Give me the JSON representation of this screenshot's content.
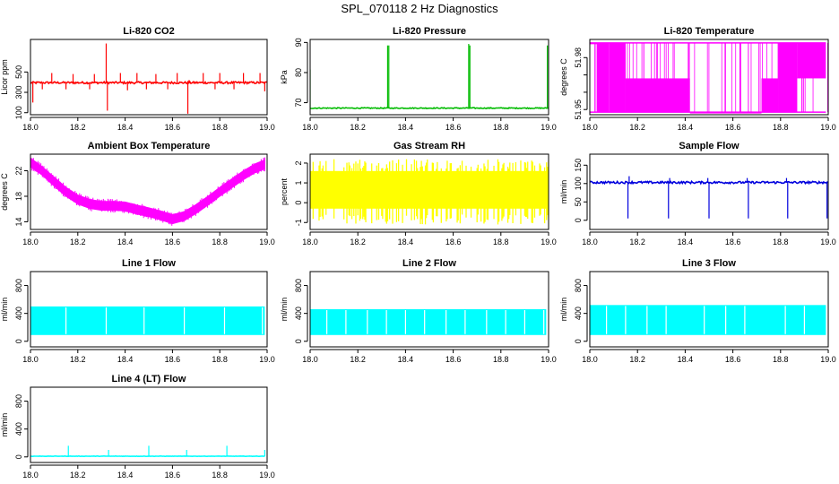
{
  "figure": {
    "title": "SPL_070118  2 Hz Diagnostics"
  },
  "chart_data": [
    {
      "id": "co2",
      "type": "line",
      "title": "Li-820 CO2",
      "ylabel": "Licor ppm",
      "xlim": [
        18.0,
        19.0
      ],
      "ylim": [
        80,
        820
      ],
      "xticks": [
        18.0,
        18.2,
        18.4,
        18.6,
        18.8,
        19.0
      ],
      "yticks": [
        100,
        300,
        500
      ],
      "color": "#ff0000",
      "render": "spiky",
      "base": 395,
      "noise": 10,
      "t0": 18.0,
      "t1": 19.0,
      "spikes": [
        {
          "x": 18.01,
          "y": 200
        },
        {
          "x": 18.05,
          "y": 330
        },
        {
          "x": 18.09,
          "y": 490
        },
        {
          "x": 18.15,
          "y": 330
        },
        {
          "x": 18.18,
          "y": 480
        },
        {
          "x": 18.25,
          "y": 330
        },
        {
          "x": 18.27,
          "y": 480
        },
        {
          "x": 18.32,
          "y": 780
        },
        {
          "x": 18.325,
          "y": 120
        },
        {
          "x": 18.38,
          "y": 490
        },
        {
          "x": 18.41,
          "y": 320
        },
        {
          "x": 18.45,
          "y": 490
        },
        {
          "x": 18.49,
          "y": 330
        },
        {
          "x": 18.53,
          "y": 480
        },
        {
          "x": 18.58,
          "y": 330
        },
        {
          "x": 18.62,
          "y": 490
        },
        {
          "x": 18.665,
          "y": 90
        },
        {
          "x": 18.67,
          "y": 420
        },
        {
          "x": 18.73,
          "y": 490
        },
        {
          "x": 18.78,
          "y": 330
        },
        {
          "x": 18.8,
          "y": 490
        },
        {
          "x": 18.86,
          "y": 330
        },
        {
          "x": 18.9,
          "y": 490
        },
        {
          "x": 18.97,
          "y": 490
        },
        {
          "x": 18.99,
          "y": 310
        }
      ]
    },
    {
      "id": "pressure",
      "type": "line",
      "title": "Li-820 Pressure",
      "ylabel": "kPa",
      "xlim": [
        18.0,
        19.0
      ],
      "ylim": [
        66,
        91
      ],
      "xticks": [
        18.0,
        18.2,
        18.4,
        18.6,
        18.8,
        19.0
      ],
      "yticks": [
        70,
        80,
        90
      ],
      "color": "#00bb00",
      "render": "spiky",
      "base": 68.2,
      "noise": 0.15,
      "t0": 18.0,
      "t1": 19.0,
      "spikes": [
        {
          "x": 18.0,
          "y": 81
        },
        {
          "x": 18.325,
          "y": 89
        },
        {
          "x": 18.33,
          "y": 89
        },
        {
          "x": 18.665,
          "y": 89.5
        },
        {
          "x": 18.67,
          "y": 89
        },
        {
          "x": 18.995,
          "y": 89
        }
      ]
    },
    {
      "id": "temperature",
      "type": "line",
      "title": "Li-820 Temperature",
      "ylabel": "degrees C",
      "xlim": [
        18.0,
        19.0
      ],
      "ylim": [
        51.947,
        51.9905
      ],
      "xticks": [
        18.0,
        18.2,
        18.4,
        18.6,
        18.8,
        19.0
      ],
      "yticks": [
        51.95,
        51.96,
        51.97,
        51.98
      ],
      "ytick_labels": [
        "51.95",
        "",
        "",
        "51.98"
      ],
      "color": "#ff00ff",
      "render": "bands",
      "bands": [
        {
          "x0": 18.0,
          "x1": 18.03,
          "lo": 51.9885,
          "hi": 51.9885
        },
        {
          "x0": 18.03,
          "x1": 18.08,
          "lo": 51.9485,
          "hi": 51.9885
        },
        {
          "x0": 18.08,
          "x1": 18.15,
          "lo": 51.9485,
          "hi": 51.9885
        },
        {
          "x0": 18.15,
          "x1": 18.42,
          "lo": 51.9485,
          "hi": 51.968
        },
        {
          "x0": 18.42,
          "x1": 18.72,
          "lo": 51.9485,
          "hi": 51.9485
        },
        {
          "x0": 18.72,
          "x1": 18.79,
          "lo": 51.9485,
          "hi": 51.968
        },
        {
          "x0": 18.79,
          "x1": 18.87,
          "lo": 51.9485,
          "hi": 51.9885
        },
        {
          "x0": 18.87,
          "x1": 18.99,
          "lo": 51.968,
          "hi": 51.9885
        }
      ]
    },
    {
      "id": "ambient",
      "type": "line",
      "title": "Ambient Box Temperature",
      "ylabel": "degrees C",
      "xlim": [
        18.0,
        19.0
      ],
      "ylim": [
        12.8,
        24.6
      ],
      "xticks": [
        18.0,
        18.2,
        18.4,
        18.6,
        18.8,
        19.0
      ],
      "yticks": [
        14,
        18,
        22
      ],
      "color": "#ff00ff",
      "render": "envelope",
      "points": [
        {
          "x": 18.0,
          "lo": 22.6,
          "hi": 24.0
        },
        {
          "x": 18.05,
          "lo": 21.3,
          "hi": 22.6
        },
        {
          "x": 18.1,
          "lo": 19.6,
          "hi": 21.0
        },
        {
          "x": 18.15,
          "lo": 18.0,
          "hi": 19.4
        },
        {
          "x": 18.2,
          "lo": 16.8,
          "hi": 18.2
        },
        {
          "x": 18.25,
          "lo": 16.1,
          "hi": 17.5
        },
        {
          "x": 18.3,
          "lo": 15.8,
          "hi": 17.2
        },
        {
          "x": 18.35,
          "lo": 15.8,
          "hi": 17.2
        },
        {
          "x": 18.4,
          "lo": 15.7,
          "hi": 17.1
        },
        {
          "x": 18.45,
          "lo": 15.2,
          "hi": 16.6
        },
        {
          "x": 18.5,
          "lo": 14.8,
          "hi": 16.2
        },
        {
          "x": 18.55,
          "lo": 14.3,
          "hi": 15.7
        },
        {
          "x": 18.6,
          "lo": 13.7,
          "hi": 15.1
        },
        {
          "x": 18.65,
          "lo": 14.2,
          "hi": 15.6
        },
        {
          "x": 18.7,
          "lo": 15.3,
          "hi": 16.7
        },
        {
          "x": 18.75,
          "lo": 16.6,
          "hi": 18.0
        },
        {
          "x": 18.8,
          "lo": 18.0,
          "hi": 19.4
        },
        {
          "x": 18.85,
          "lo": 19.3,
          "hi": 20.7
        },
        {
          "x": 18.9,
          "lo": 20.6,
          "hi": 22.0
        },
        {
          "x": 18.95,
          "lo": 21.7,
          "hi": 23.1
        },
        {
          "x": 18.99,
          "lo": 22.3,
          "hi": 23.7
        }
      ]
    },
    {
      "id": "rh",
      "type": "line",
      "title": "Gas Stream RH",
      "ylabel": "percent",
      "xlim": [
        18.0,
        19.0
      ],
      "ylim": [
        -1.35,
        2.45
      ],
      "xticks": [
        18.0,
        18.2,
        18.4,
        18.6,
        18.8,
        19.0
      ],
      "yticks": [
        -1,
        0,
        1,
        2
      ],
      "color": "#ffff00",
      "render": "noise",
      "lo": -1.1,
      "hi": 2.2,
      "core_lo": -0.3,
      "core_hi": 1.6,
      "t0": 18.0,
      "t1": 19.0
    },
    {
      "id": "sample",
      "type": "line",
      "title": "Sample Flow",
      "ylabel": "ml/min",
      "xlim": [
        18.0,
        19.0
      ],
      "ylim": [
        -25,
        180
      ],
      "xticks": [
        18.0,
        18.2,
        18.4,
        18.6,
        18.8,
        19.0
      ],
      "yticks": [
        0,
        50,
        100,
        150
      ],
      "color": "#0000dd",
      "render": "spiky",
      "base": 103,
      "noise": 3,
      "t0": 18.0,
      "t1": 19.0,
      "spikes": [
        {
          "x": 18.16,
          "y": 5
        },
        {
          "x": 18.165,
          "y": 120
        },
        {
          "x": 18.33,
          "y": 5
        },
        {
          "x": 18.335,
          "y": 115
        },
        {
          "x": 18.5,
          "y": 5
        },
        {
          "x": 18.495,
          "y": 115
        },
        {
          "x": 18.665,
          "y": 5
        },
        {
          "x": 18.66,
          "y": 115
        },
        {
          "x": 18.83,
          "y": 5
        },
        {
          "x": 18.825,
          "y": 115
        },
        {
          "x": 18.995,
          "y": 5
        }
      ]
    },
    {
      "id": "line1",
      "type": "area",
      "title": "Line 1 Flow",
      "ylabel": "ml/min",
      "xlim": [
        18.0,
        19.0
      ],
      "ylim": [
        -80,
        1000
      ],
      "xticks": [
        18.0,
        18.2,
        18.4,
        18.6,
        18.8,
        19.0
      ],
      "yticks": [
        0,
        400,
        800
      ],
      "color": "#00ffff",
      "render": "block",
      "lo": 90,
      "hi": 500,
      "t0": 18.0,
      "t1": 18.99,
      "gaps": [
        18.15,
        18.32,
        18.48,
        18.65,
        18.82,
        18.98
      ]
    },
    {
      "id": "line2",
      "type": "area",
      "title": "Line 2 Flow",
      "ylabel": "ml/min",
      "xlim": [
        18.0,
        19.0
      ],
      "ylim": [
        -80,
        1000
      ],
      "xticks": [
        18.0,
        18.2,
        18.4,
        18.6,
        18.8,
        19.0
      ],
      "yticks": [
        0,
        400,
        800
      ],
      "color": "#00ffff",
      "render": "block",
      "lo": 90,
      "hi": 460,
      "t0": 18.0,
      "t1": 18.99,
      "gaps": [
        18.07,
        18.15,
        18.24,
        18.32,
        18.4,
        18.48,
        18.57,
        18.65,
        18.74,
        18.82,
        18.9,
        18.98
      ]
    },
    {
      "id": "line3",
      "type": "area",
      "title": "Line 3 Flow",
      "ylabel": "ml/min",
      "xlim": [
        18.0,
        19.0
      ],
      "ylim": [
        -80,
        1000
      ],
      "xticks": [
        18.0,
        18.2,
        18.4,
        18.6,
        18.8,
        19.0
      ],
      "yticks": [
        0,
        400,
        800
      ],
      "color": "#00ffff",
      "render": "block",
      "lo": 90,
      "hi": 520,
      "t0": 18.0,
      "t1": 18.99,
      "gaps": [
        18.07,
        18.15,
        18.24,
        18.32,
        18.48,
        18.57,
        18.65,
        18.82,
        18.9
      ]
    },
    {
      "id": "line4",
      "type": "line",
      "title": "Line 4 (LT) Flow",
      "ylabel": "ml/min",
      "xlim": [
        18.0,
        19.0
      ],
      "ylim": [
        -80,
        1000
      ],
      "xticks": [
        18.0,
        18.2,
        18.4,
        18.6,
        18.8,
        19.0
      ],
      "yticks": [
        0,
        400,
        800
      ],
      "color": "#00ffff",
      "render": "spiky",
      "base": 10,
      "noise": 3,
      "t0": 18.0,
      "t1": 18.99,
      "spikes": [
        {
          "x": 18.16,
          "y": 160
        },
        {
          "x": 18.33,
          "y": 100
        },
        {
          "x": 18.5,
          "y": 160
        },
        {
          "x": 18.66,
          "y": 100
        },
        {
          "x": 18.83,
          "y": 160
        },
        {
          "x": 18.99,
          "y": 100
        }
      ]
    }
  ]
}
